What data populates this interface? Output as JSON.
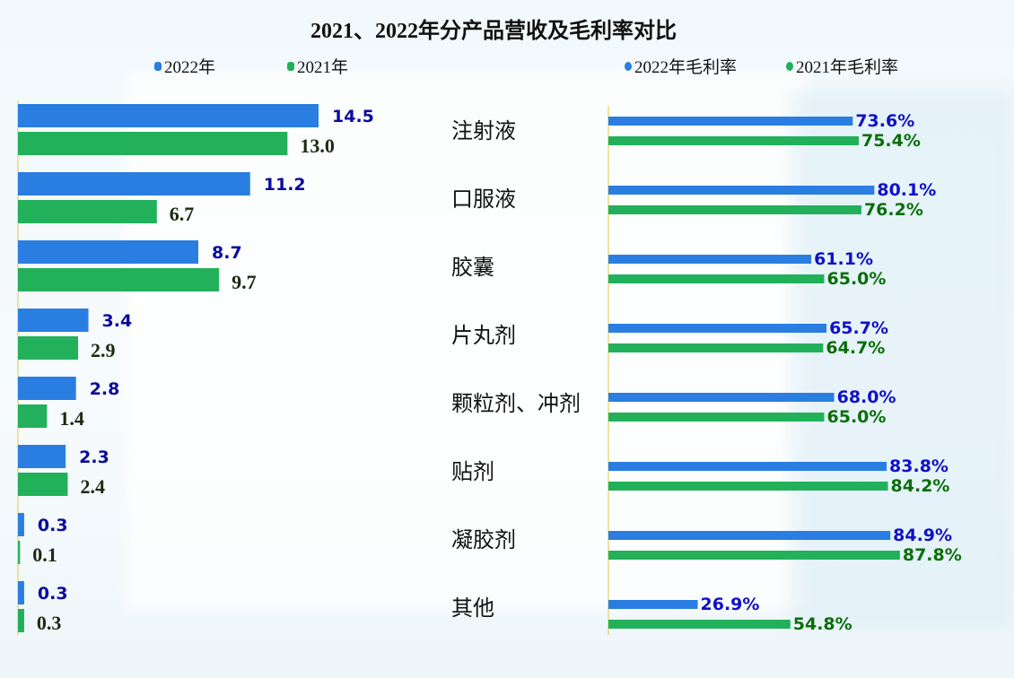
{
  "chart_data": [
    {
      "type": "bar",
      "orientation": "horizontal",
      "title": "2021、2022年分产品营收及毛利率对比",
      "categories": [
        "注射液",
        "口服液",
        "胶囊",
        "片丸剂",
        "颗粒剂、冲剂",
        "贴剂",
        "凝胶剂",
        "其他"
      ],
      "series": [
        {
          "name": "2022年",
          "color": "#2a7de1",
          "values": [
            14.5,
            11.2,
            8.7,
            3.4,
            2.8,
            2.3,
            0.3,
            0.3
          ]
        },
        {
          "name": "2021年",
          "color": "#22b05a",
          "values": [
            13.0,
            6.7,
            9.7,
            2.9,
            1.4,
            2.4,
            0.1,
            0.3
          ]
        }
      ],
      "value_labels": {
        "2022年": [
          "14.5",
          "11.2",
          "8.7",
          "3.4",
          "2.8",
          "2.3",
          "0.3",
          "0.3"
        ],
        "2021年": [
          "13.0",
          "6.7",
          "9.7",
          "2.9",
          "1.4",
          "2.4",
          "0.1",
          "0.3"
        ]
      },
      "xlim": [
        0,
        15
      ],
      "grid": false,
      "legend": "top"
    },
    {
      "type": "bar",
      "orientation": "horizontal",
      "categories": [
        "注射液",
        "口服液",
        "胶囊",
        "片丸剂",
        "颗粒剂、冲剂",
        "贴剂",
        "凝胶剂",
        "其他"
      ],
      "series": [
        {
          "name": "2022年毛利率",
          "color": "#2a7de1",
          "values": [
            73.6,
            80.1,
            61.1,
            65.7,
            68.0,
            83.8,
            84.9,
            26.9
          ]
        },
        {
          "name": "2021年毛利率",
          "color": "#22b05a",
          "values": [
            75.4,
            76.2,
            65.0,
            64.7,
            65.0,
            84.2,
            87.8,
            54.8
          ]
        }
      ],
      "value_labels": {
        "2022年毛利率": [
          "73.6%",
          "80.1%",
          "61.1%",
          "65.7%",
          "68.0%",
          "83.8%",
          "84.9%",
          "26.9%"
        ],
        "2021年毛利率": [
          "75.4%",
          "76.2%",
          "65.0%",
          "64.7%",
          "65.0%",
          "84.2%",
          "87.8%",
          "54.8%"
        ]
      },
      "xlim": [
        0,
        100
      ],
      "grid": false,
      "legend": "top-right"
    }
  ]
}
